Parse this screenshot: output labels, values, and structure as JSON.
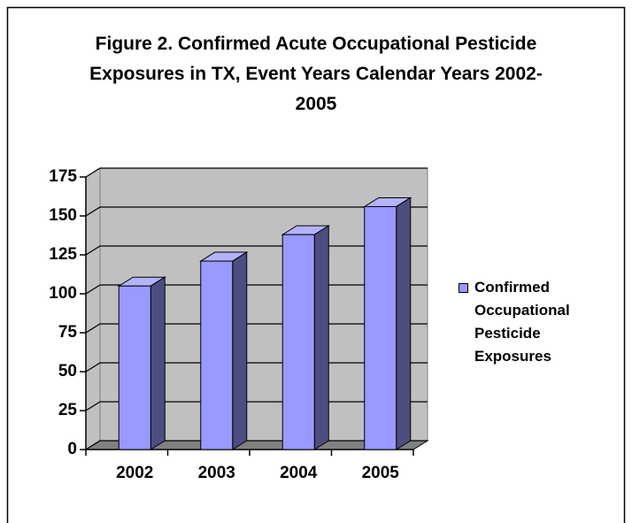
{
  "chart_data": {
    "type": "bar3d",
    "title": "Figure 2. Confirmed Acute Occupational Pesticide Exposures in TX, Event Years Calendar Years 2002-2005",
    "categories": [
      "2002",
      "2003",
      "2004",
      "2005"
    ],
    "series": [
      {
        "name": "Confirmed Occupational Pesticide Exposures",
        "color": "#9999ff",
        "values": [
          105,
          121,
          138,
          156
        ]
      }
    ],
    "ylim": [
      0,
      175
    ],
    "yticks": [
      0,
      25,
      50,
      75,
      100,
      125,
      150,
      175
    ],
    "grid": true,
    "legend": "right"
  }
}
